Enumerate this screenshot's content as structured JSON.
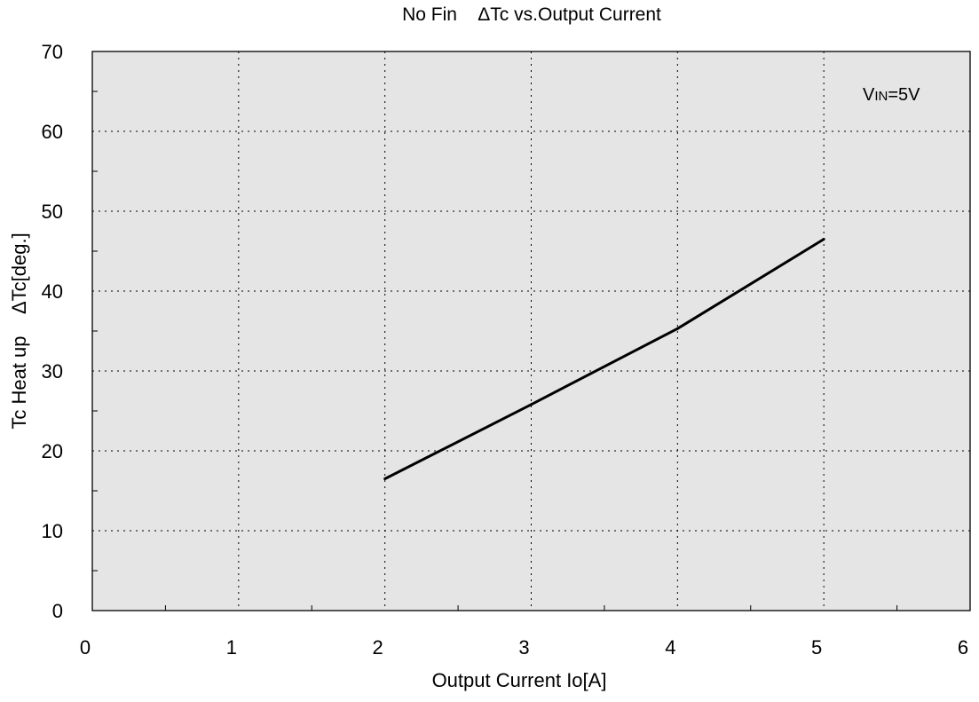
{
  "chart_data": {
    "type": "line",
    "title": "No Fin    ΔTc vs.Output Current",
    "xlabel": "Output Current Io[A]",
    "ylabel": "Tc Heat up    ΔTc[deg.]",
    "xlim": [
      0,
      6
    ],
    "ylim": [
      0,
      70
    ],
    "x_ticks": [
      "0",
      "1",
      "2",
      "3",
      "4",
      "5",
      "6"
    ],
    "y_ticks": [
      "0",
      "10",
      "20",
      "30",
      "40",
      "50",
      "60",
      "70"
    ],
    "grid": true,
    "series": [
      {
        "x": [
          2,
          3,
          4,
          5
        ],
        "y": [
          16.5,
          25.8,
          35.3,
          46.5
        ]
      }
    ],
    "annotation": {
      "main": "V",
      "sub": "IN",
      "rest": "=5V"
    },
    "colors": {
      "plot_background": "#e5e5e5",
      "line": "#000000",
      "grid": "#000000"
    }
  }
}
